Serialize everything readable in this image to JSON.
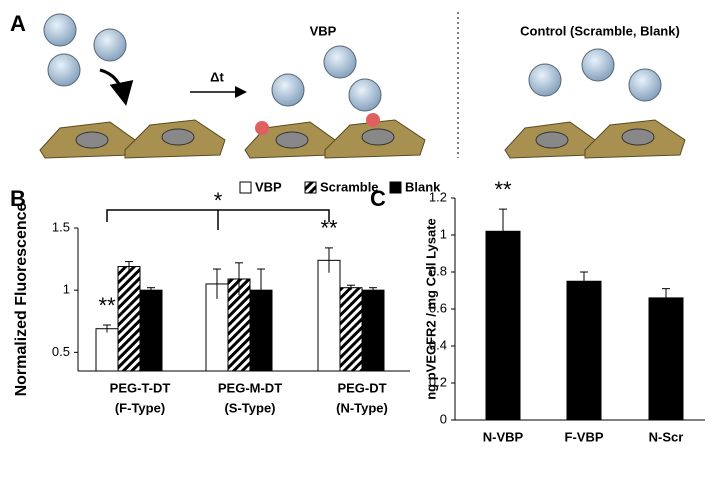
{
  "diagram": {
    "panel_label": "A",
    "step_label": "Δt",
    "vbp_label": "VBP",
    "control_label": "Control (Scramble, Blank)"
  },
  "chart_data": [
    {
      "type": "bar",
      "panel_label": "B",
      "ylabel": "Normalized Fluorescence",
      "categories": [
        [
          "PEG-T-DT",
          "(F-Type)"
        ],
        [
          "PEG-M-DT",
          "(S-Type)"
        ],
        [
          "PEG-DT",
          "(N-Type)"
        ]
      ],
      "series": [
        {
          "name": "VBP",
          "color": "#ffffff",
          "values": [
            0.69,
            1.05,
            1.24
          ],
          "errors": [
            0.03,
            0.12,
            0.1
          ],
          "marks": [
            "**",
            null,
            "**"
          ]
        },
        {
          "name": "Scramble",
          "color": "#000000",
          "hatch": true,
          "values": [
            1.19,
            1.09,
            1.02
          ],
          "errors": [
            0.04,
            0.13,
            0.02
          ]
        },
        {
          "name": "Blank",
          "color": "#000000",
          "values": [
            1.0,
            1.0,
            1.0
          ],
          "errors": [
            0.02,
            0.17,
            0.02
          ]
        }
      ],
      "bracket_label": "*",
      "ylim": [
        0.35,
        1.5
      ],
      "yticks": [
        0.5,
        1,
        1.5
      ],
      "legend": "top"
    },
    {
      "type": "bar",
      "panel_label": "C",
      "ylabel": "ng pVEGFR2 / mg Cell Lysate",
      "categories": [
        "N-VBP",
        "F-VBP",
        "N-Scr"
      ],
      "values": [
        1.02,
        0.75,
        0.66
      ],
      "errors": [
        0.12,
        0.05,
        0.05
      ],
      "marks": [
        "**",
        null,
        null
      ],
      "color": "#000000",
      "ylim": [
        0,
        1.2
      ],
      "yticks": [
        0,
        0.2,
        0.4,
        0.6,
        0.8,
        1,
        1.2
      ]
    }
  ]
}
